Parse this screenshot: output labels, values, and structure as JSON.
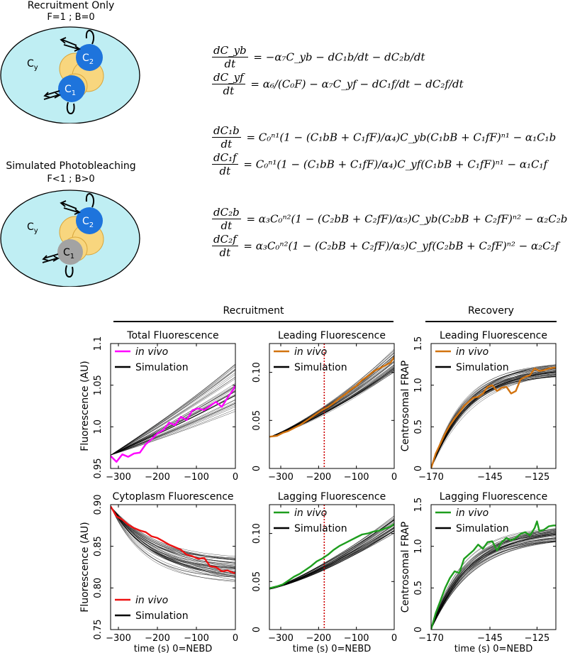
{
  "diagram": {
    "top_title": "Recruitment Only",
    "top_subtitle": "F=1 ; B=0",
    "bottom_title": "Simulated Photobleaching",
    "bottom_subtitle": "F<1 ; B>0",
    "cy_label": "C",
    "cy_sub": "y",
    "c1_label": "C",
    "c1_sub": "1",
    "c2_label": "C",
    "c2_sub": "2",
    "colors": {
      "cytoplasm": "#bfeef3",
      "pcm": "#f8d67e",
      "c2": "#1e74dc",
      "c1_top": "#1e74dc",
      "c1_bottom": "#a3a3a3"
    }
  },
  "equations": [
    {
      "num": "dC_yb",
      "den": "dt",
      "rhs": "= −α₇C_yb − dC₁b/dt − dC₂b/dt"
    },
    {
      "num": "dC_yf",
      "den": "dt",
      "rhs": "= α₆/(C₀F) − α₇C_yf − dC₁f/dt − dC₂f/dt"
    },
    {
      "num": "dC₁b",
      "den": "dt",
      "rhs": "= C₀ⁿ¹(1 − (C₁bB + C₁fF)/α₄)C_yb(C₁bB + C₁fF)ⁿ¹ − α₁C₁b"
    },
    {
      "num": "dC₁f",
      "den": "dt",
      "rhs": "= C₀ⁿ¹(1 − (C₁bB + C₁fF)/α₄)C_yf(C₁bB + C₁fF)ⁿ¹ − α₁C₁f"
    },
    {
      "num": "dC₂b",
      "den": "dt",
      "rhs": "= α₃C₀ⁿ²(1 − (C₂bB + C₂fF)/α₅)C_yb(C₂bB + C₂fF)ⁿ² − α₂C₂b"
    },
    {
      "num": "dC₂f",
      "den": "dt",
      "rhs": "= α₃C₀ⁿ²(1 − (C₂bB + C₂fF)/α₅)C_yf(C₂bB + C₂fF)ⁿ² − α₂C₂f"
    }
  ],
  "headers": {
    "recruitment": "Recruitment",
    "recovery": "Recovery"
  },
  "chart_data": [
    {
      "type": "line",
      "title": "Total Fluorescence",
      "ylabel": "Fluorescence (AU)",
      "xlabel": "",
      "xlim": [
        -320,
        0
      ],
      "ylim": [
        0.95,
        1.1
      ],
      "xticks": [
        -300,
        -200,
        -100,
        0
      ],
      "xtick_labels": [
        "−300",
        "−200",
        "−100",
        "0"
      ],
      "yticks": [
        0.95,
        1.0,
        1.05,
        1.1
      ],
      "ytick_labels": [
        "0.95",
        "1.0",
        "1.05",
        "1.1"
      ],
      "legend": "top-left",
      "legend_entries": [
        "in vivo",
        "Simulation"
      ],
      "invivo_color": "#ff00ff",
      "series": [
        {
          "name": "in vivo",
          "x": [
            -320,
            -305,
            -290,
            -275,
            -260,
            -245,
            -230,
            -215,
            -200,
            -185,
            -170,
            -155,
            -140,
            -125,
            -110,
            -95,
            -80,
            -65,
            -50,
            -35,
            -20,
            -5,
            0
          ],
          "values": [
            0.965,
            0.958,
            0.967,
            0.964,
            0.968,
            0.969,
            0.979,
            0.985,
            0.992,
            0.996,
            1.005,
            1.002,
            1.012,
            1.008,
            1.02,
            1.022,
            1.02,
            1.025,
            1.03,
            1.024,
            1.035,
            1.045,
            1.05
          ]
        },
        {
          "name": "Simulation",
          "model": "linear-band",
          "start": 0.966,
          "end_min": 1.018,
          "end_max": 1.077
        }
      ]
    },
    {
      "type": "line",
      "title": "Leading Fluorescence",
      "ylabel": "",
      "xlabel": "",
      "xlim": [
        -330,
        0
      ],
      "ylim": [
        0.0,
        0.13
      ],
      "xticks": [
        -300,
        -200,
        -100,
        0
      ],
      "xtick_labels": [
        "−300",
        "−200",
        "−100",
        "0"
      ],
      "yticks": [
        0.0,
        0.05,
        0.1
      ],
      "ytick_labels": [
        "0",
        "0.05",
        "0.10"
      ],
      "legend": "top-left",
      "legend_entries": [
        "in vivo",
        "Simulation"
      ],
      "invivo_color": "#d2730f",
      "vline": -185,
      "series": [
        {
          "name": "in vivo",
          "x": [
            -330,
            -310,
            -295,
            -280,
            -265,
            -250,
            -235,
            -220,
            -205,
            -190,
            -175,
            -160,
            -145,
            -130,
            -115,
            -100,
            -85,
            -70,
            -55,
            -40,
            -25,
            -10,
            0
          ],
          "values": [
            0.033,
            0.034,
            0.037,
            0.039,
            0.042,
            0.045,
            0.049,
            0.053,
            0.057,
            0.061,
            0.064,
            0.068,
            0.073,
            0.077,
            0.082,
            0.086,
            0.092,
            0.096,
            0.101,
            0.104,
            0.107,
            0.11,
            0.116
          ]
        },
        {
          "name": "Simulation",
          "model": "sigmoid-band",
          "start": 0.033,
          "end_min": 0.1,
          "end_max": 0.125
        }
      ]
    },
    {
      "type": "line",
      "title": "Leading Fluorescence",
      "ylabel": "Centrosomal FRAP",
      "xlabel": "",
      "xlim": [
        -170,
        -117
      ],
      "ylim": [
        0.0,
        1.5
      ],
      "xticks": [
        -170,
        -145,
        -125
      ],
      "xtick_labels": [
        "−170",
        "−145",
        "−125"
      ],
      "yticks": [
        0.0,
        0.5,
        1.0,
        1.5
      ],
      "ytick_labels": [
        "0",
        "0.5",
        "1.0",
        "1.5"
      ],
      "legend": "top-left",
      "legend_entries": [
        "in vivo",
        "Simulation"
      ],
      "invivo_color": "#d2730f",
      "series": [
        {
          "name": "in vivo",
          "x": [
            -170,
            -168,
            -166,
            -164,
            -162,
            -160,
            -158,
            -156,
            -154,
            -152,
            -150,
            -148,
            -146,
            -144,
            -142,
            -140,
            -138,
            -136,
            -134,
            -132,
            -130,
            -128,
            -126,
            -124,
            -122,
            -120,
            -118,
            -117
          ],
          "values": [
            0.0,
            0.18,
            0.3,
            0.42,
            0.52,
            0.6,
            0.67,
            0.75,
            0.8,
            0.85,
            0.86,
            0.9,
            0.98,
            1.0,
            0.93,
            0.97,
            0.98,
            0.9,
            0.93,
            1.07,
            1.1,
            1.12,
            1.2,
            1.17,
            1.18,
            1.2,
            1.21,
            1.21
          ]
        },
        {
          "name": "Simulation",
          "model": "exp-band",
          "start": 0.0,
          "end_min": 1.1,
          "end_max": 1.25
        }
      ]
    },
    {
      "type": "line",
      "title": "Cytoplasm Fluorescence",
      "ylabel": "Fluorescence (AU)",
      "xlabel": "time (s) 0=NEBD",
      "xlim": [
        -320,
        0
      ],
      "ylim": [
        0.75,
        0.9
      ],
      "xticks": [
        -300,
        -200,
        -100,
        0
      ],
      "xtick_labels": [
        "−300",
        "−200",
        "−100",
        "0"
      ],
      "yticks": [
        0.75,
        0.8,
        0.85,
        0.9
      ],
      "ytick_labels": [
        "0.75",
        "0.80",
        "0.85",
        "0.90"
      ],
      "legend": "bottom-left",
      "legend_entries": [
        "in vivo",
        "Simulation"
      ],
      "invivo_color": "#ee1111",
      "series": [
        {
          "name": "in vivo",
          "x": [
            -320,
            -305,
            -290,
            -275,
            -260,
            -245,
            -230,
            -215,
            -200,
            -185,
            -170,
            -155,
            -140,
            -125,
            -110,
            -95,
            -80,
            -65,
            -50,
            -35,
            -20,
            -5,
            0
          ],
          "values": [
            0.898,
            0.886,
            0.882,
            0.876,
            0.872,
            0.869,
            0.867,
            0.862,
            0.86,
            0.856,
            0.852,
            0.849,
            0.846,
            0.84,
            0.838,
            0.835,
            0.836,
            0.826,
            0.825,
            0.82,
            0.821,
            0.818,
            0.818
          ]
        },
        {
          "name": "Simulation",
          "model": "decay-band",
          "start": 0.898,
          "end_min": 0.807,
          "end_max": 0.838
        }
      ]
    },
    {
      "type": "line",
      "title": "Lagging Fluorescence",
      "ylabel": "",
      "xlabel": "time (s) 0=NEBD",
      "xlim": [
        -330,
        0
      ],
      "ylim": [
        0.0,
        0.13
      ],
      "xticks": [
        -300,
        -200,
        -100,
        0
      ],
      "xtick_labels": [
        "−300",
        "−200",
        "−100",
        "0"
      ],
      "yticks": [
        0.0,
        0.05,
        0.1
      ],
      "ytick_labels": [
        "0",
        "0.05",
        "0.10"
      ],
      "legend": "top-left",
      "legend_entries": [
        "in vivo",
        "Simulation"
      ],
      "invivo_color": "#1e9e1e",
      "vline": -185,
      "series": [
        {
          "name": "in vivo",
          "x": [
            -330,
            -310,
            -295,
            -280,
            -265,
            -250,
            -235,
            -220,
            -205,
            -190,
            -175,
            -160,
            -145,
            -130,
            -115,
            -100,
            -85,
            -70,
            -55,
            -40,
            -25,
            -10,
            0
          ],
          "values": [
            0.043,
            0.045,
            0.047,
            0.051,
            0.055,
            0.058,
            0.062,
            0.066,
            0.071,
            0.074,
            0.078,
            0.083,
            0.087,
            0.09,
            0.093,
            0.096,
            0.099,
            0.1,
            0.102,
            0.103,
            0.105,
            0.107,
            0.11
          ]
        },
        {
          "name": "Simulation",
          "model": "sigmoid-band",
          "start": 0.042,
          "end_min": 0.1,
          "end_max": 0.12
        }
      ]
    },
    {
      "type": "line",
      "title": "Lagging Fluorescence",
      "ylabel": "Centrosomal FRAP",
      "xlabel": "time (s) 0=NEBD",
      "xlim": [
        -170,
        -117
      ],
      "ylim": [
        0.0,
        1.5
      ],
      "xticks": [
        -170,
        -145,
        -125
      ],
      "xtick_labels": [
        "−170",
        "−145",
        "−125"
      ],
      "yticks": [
        0.0,
        0.5,
        1.0,
        1.5
      ],
      "ytick_labels": [
        "0",
        "0.5",
        "1.0",
        "1.5"
      ],
      "legend": "top-left",
      "legend_entries": [
        "in vivo",
        "Simulation"
      ],
      "invivo_color": "#1e9e1e",
      "series": [
        {
          "name": "in vivo",
          "x": [
            -170,
            -168,
            -166,
            -164,
            -162,
            -160,
            -158,
            -156,
            -154,
            -152,
            -150,
            -148,
            -146,
            -144,
            -142,
            -140,
            -138,
            -136,
            -134,
            -132,
            -130,
            -128,
            -126,
            -125,
            -124,
            -122,
            -120,
            -118,
            -117
          ],
          "values": [
            0.0,
            0.2,
            0.35,
            0.5,
            0.62,
            0.7,
            0.68,
            0.85,
            0.9,
            0.95,
            1.02,
            0.97,
            1.05,
            1.06,
            0.95,
            1.05,
            1.1,
            1.07,
            1.1,
            1.15,
            1.17,
            1.13,
            1.22,
            1.3,
            1.18,
            1.2,
            1.24,
            1.25,
            1.25
          ]
        },
        {
          "name": "Simulation",
          "model": "exp-band",
          "start": 0.0,
          "end_min": 1.05,
          "end_max": 1.22
        }
      ]
    }
  ]
}
